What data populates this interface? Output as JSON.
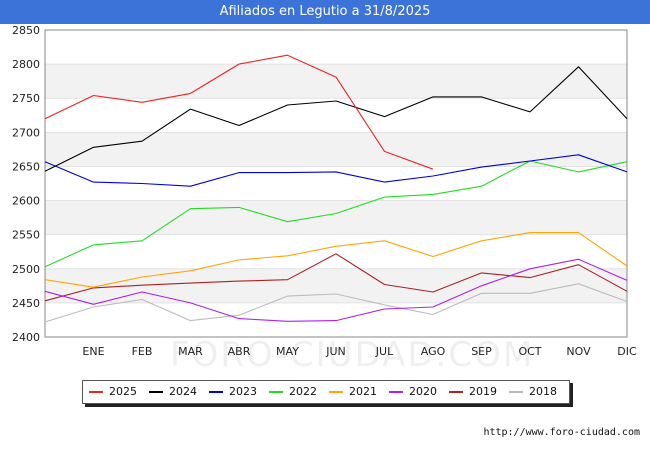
{
  "chart_data": {
    "type": "line",
    "title": "Afiliados en Legutio a 31/8/2025",
    "xlabel": "",
    "ylabel": "",
    "categories": [
      "",
      "ENE",
      "FEB",
      "MAR",
      "ABR",
      "MAY",
      "JUN",
      "JUL",
      "AGO",
      "SEP",
      "OCT",
      "NOV",
      "DIC"
    ],
    "ylim": [
      2400,
      2850
    ],
    "yticks": [
      2400,
      2450,
      2500,
      2550,
      2600,
      2650,
      2700,
      2750,
      2800,
      2850
    ],
    "grid": "horizontal bands",
    "legend_position": "bottom",
    "series": [
      {
        "name": "2025",
        "color": "#ee2222",
        "values": [
          2720,
          2754,
          2744,
          2757,
          2800,
          2813,
          2781,
          2672,
          2646,
          null,
          null,
          null,
          null
        ]
      },
      {
        "name": "2024",
        "color": "#000000",
        "values": [
          2643,
          2678,
          2687,
          2734,
          2710,
          2740,
          2746,
          2723,
          2752,
          2752,
          2730,
          2796,
          2720
        ]
      },
      {
        "name": "2023",
        "color": "#0000dd",
        "values": [
          2657,
          2627,
          2625,
          2621,
          2641,
          2641,
          2642,
          2627,
          2636,
          2649,
          2658,
          2667,
          2642
        ]
      },
      {
        "name": "2022",
        "color": "#22dd22",
        "values": [
          2503,
          2535,
          2541,
          2588,
          2590,
          2569,
          2581,
          2605,
          2609,
          2621,
          2658,
          2642,
          2657
        ]
      },
      {
        "name": "2021",
        "color": "#ffa500",
        "values": [
          2484,
          2473,
          2488,
          2497,
          2513,
          2519,
          2533,
          2541,
          2518,
          2541,
          2553,
          2553,
          2504
        ]
      },
      {
        "name": "2020",
        "color": "#aa22ee",
        "values": [
          2467,
          2448,
          2466,
          2450,
          2427,
          2423,
          2424,
          2441,
          2444,
          2475,
          2500,
          2514,
          2483
        ]
      },
      {
        "name": "2019",
        "color": "#aa2222",
        "values": [
          2453,
          2472,
          2476,
          2479,
          2482,
          2484,
          2522,
          2477,
          2466,
          2494,
          2487,
          2506,
          2467
        ]
      },
      {
        "name": "2018",
        "color": "#bbbbbb",
        "values": [
          2422,
          2444,
          2455,
          2424,
          2432,
          2460,
          2463,
          2447,
          2433,
          2464,
          2464,
          2478,
          2452
        ]
      }
    ]
  },
  "watermark": "FORO-CIUDAD.COM",
  "footer": "http://www.foro-ciudad.com"
}
